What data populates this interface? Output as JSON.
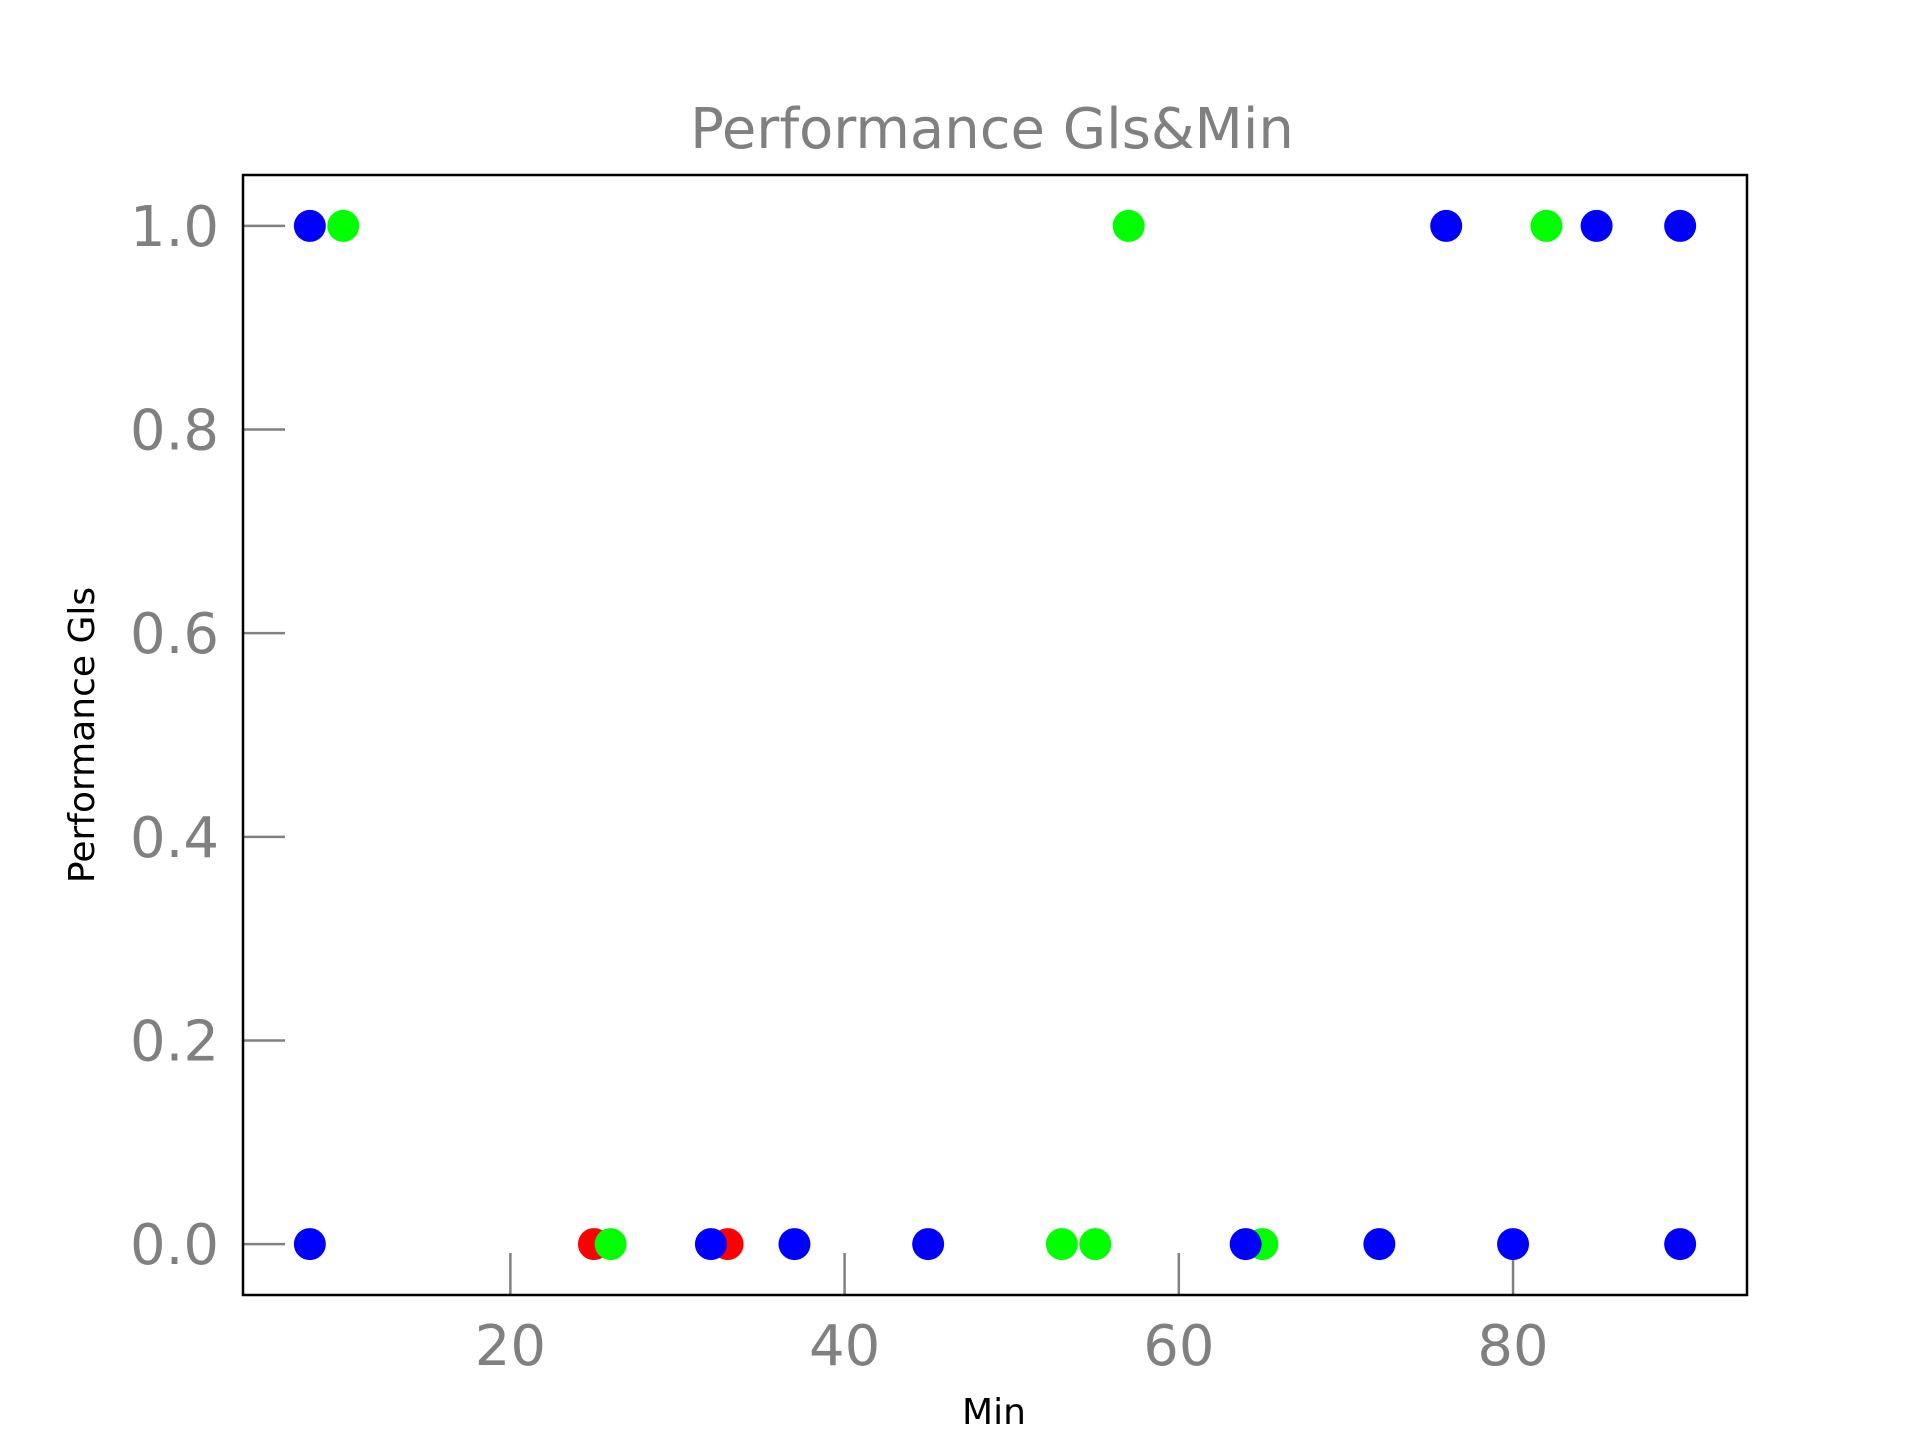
{
  "chart_data": {
    "type": "scatter",
    "title": "Performance Gls&Min",
    "xlabel": "Min",
    "ylabel": "Performance Gls",
    "xlim": [
      4,
      94
    ],
    "ylim": [
      -0.05,
      1.05
    ],
    "xticks": [
      20,
      40,
      60,
      80
    ],
    "yticks": [
      0.0,
      0.2,
      0.4,
      0.6,
      0.8,
      1.0
    ],
    "grid": false,
    "legend": "none",
    "series": [
      {
        "color": "#ff0000",
        "points": [
          {
            "x": 25,
            "y": 0
          },
          {
            "x": 33,
            "y": 0
          }
        ]
      },
      {
        "color": "#00ff00",
        "points": [
          {
            "x": 10,
            "y": 1
          },
          {
            "x": 26,
            "y": 0
          },
          {
            "x": 53,
            "y": 0
          },
          {
            "x": 55,
            "y": 0
          },
          {
            "x": 57,
            "y": 1
          },
          {
            "x": 65,
            "y": 0
          },
          {
            "x": 82,
            "y": 1
          }
        ]
      },
      {
        "color": "#0000ff",
        "points": [
          {
            "x": 8,
            "y": 1
          },
          {
            "x": 8,
            "y": 0
          },
          {
            "x": 32,
            "y": 0
          },
          {
            "x": 37,
            "y": 0
          },
          {
            "x": 45,
            "y": 0
          },
          {
            "x": 64,
            "y": 0
          },
          {
            "x": 72,
            "y": 0
          },
          {
            "x": 76,
            "y": 1
          },
          {
            "x": 80,
            "y": 0
          },
          {
            "x": 85,
            "y": 1
          },
          {
            "x": 90,
            "y": 1
          },
          {
            "x": 90,
            "y": 0
          }
        ]
      }
    ]
  }
}
